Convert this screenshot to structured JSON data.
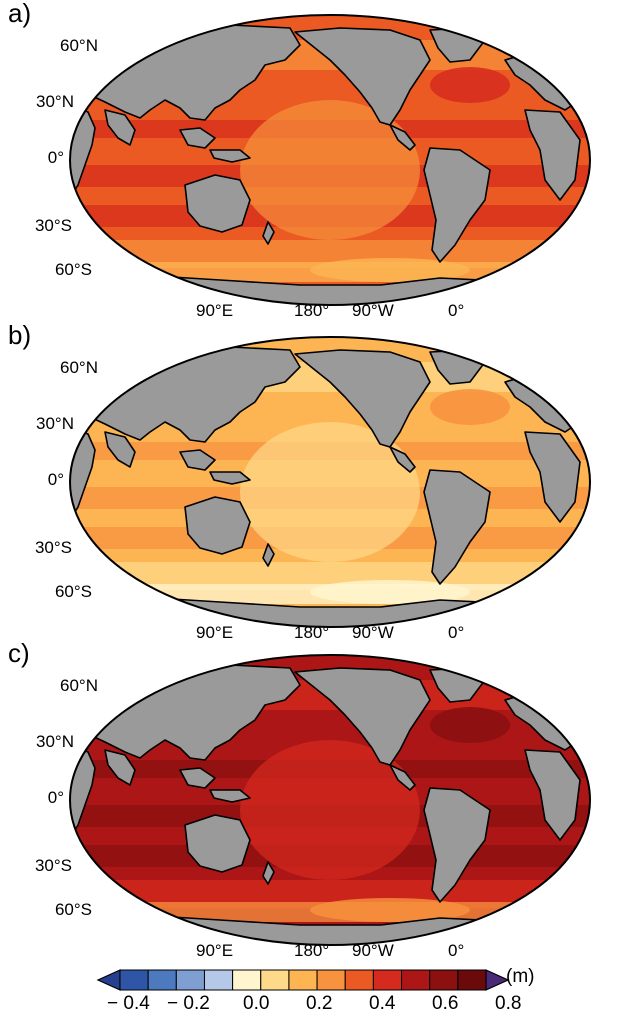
{
  "panels": [
    {
      "label": "a)",
      "theme": "a"
    },
    {
      "label": "b)",
      "theme": "b"
    },
    {
      "label": "c)",
      "theme": "c"
    }
  ],
  "lat_labels": [
    "60°N",
    "30°N",
    "0°",
    "30°S",
    "60°S"
  ],
  "lon_labels": [
    "90°E",
    "180°",
    "90°W",
    "0°"
  ],
  "colorbar": {
    "unit": "(m)",
    "tick_labels": [
      "− 0.4",
      "− 0.2",
      "0.0",
      "0.2",
      "0.4",
      "0.6",
      "0.8"
    ],
    "colors": [
      "#2f56a6",
      "#4d79bf",
      "#7f9fd3",
      "#b6c8e8",
      "#fff6cf",
      "#fed98a",
      "#fdb553",
      "#f7923f",
      "#ec5a24",
      "#d52a1e",
      "#ad1616",
      "#8b1010",
      "#6b0a0a"
    ],
    "under_color": "#26408f",
    "over_color": "#4a2a78"
  },
  "map_colors": {
    "land": "#9a9a9a",
    "coast": "#000000",
    "a": {
      "base": "#ea5a22",
      "warm": "#d72d1e",
      "cool": "#f7913c",
      "pale": "#fdb553",
      "cold": "#2f56a6"
    },
    "b": {
      "base": "#fdb553",
      "warm": "#f7923f",
      "cool": "#fed98a",
      "pale": "#fff6cf",
      "cold": "#2f56a6"
    },
    "c": {
      "base": "#ad1616",
      "warm": "#8b1010",
      "cool": "#d52a1e",
      "pale": "#f7923f",
      "cold": "#4a3a9a"
    }
  }
}
